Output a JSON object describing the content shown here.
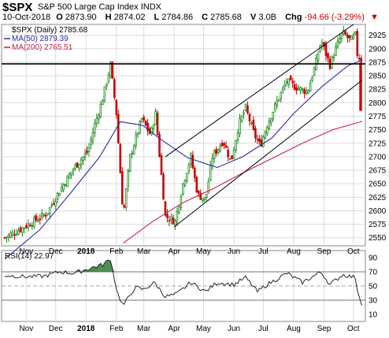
{
  "header": {
    "symbol": "$SPX",
    "name": "S&P 500 Large Cap Index",
    "exchange": "INDX",
    "date": "10-Oct-2018",
    "open_label": "O",
    "open": "2873.90",
    "high_label": "H",
    "high": "2874.02",
    "low_label": "L",
    "low": "2784.86",
    "close_label": "C",
    "close": "2785.68",
    "volume_label": "V",
    "volume": "3.0B",
    "change_label": "Chg",
    "change": "-94.66 (-3.29%)",
    "change_icon": "triangle-down-icon"
  },
  "colors": {
    "price_up": "#1a8a1a",
    "price_down": "#cc0000",
    "ma50": "#2b2bb0",
    "ma200": "#cc2244",
    "channel": "#000000",
    "rsi_fill": "#2e7d32",
    "rsi_line": "#111111"
  },
  "chart_data": [
    {
      "type": "line",
      "subtype": "candlestick",
      "title": "$SPX (Daily) 2785.68",
      "x_ticks": [
        "Nov",
        "Dec",
        "2018",
        "Feb",
        "Mar",
        "Apr",
        "May",
        "Jun",
        "Jul",
        "Aug",
        "Sep",
        "Oct"
      ],
      "y_ticks": [
        2550,
        2575,
        2600,
        2625,
        2650,
        2675,
        2700,
        2725,
        2750,
        2775,
        2800,
        2825,
        2850,
        2875,
        2900,
        2925
      ],
      "ylim": [
        2535,
        2945
      ],
      "axis_side": "right",
      "grid": true,
      "legend_position": "top-left",
      "x_domain": [
        "2017-10-10",
        "2018-10-10"
      ],
      "legend": [
        {
          "label": "$SPX (Daily) 2785.68",
          "color": "#000000"
        },
        {
          "label": "MA(50) 2879.39",
          "color": "#2b2bb0"
        },
        {
          "label": "MA(200) 2765.51",
          "color": "#cc2244"
        }
      ],
      "close_series": [
        [
          "2017-10-10",
          2550
        ],
        [
          "2017-10-25",
          2565
        ],
        [
          "2017-11-08",
          2580
        ],
        [
          "2017-11-22",
          2595
        ],
        [
          "2017-12-06",
          2640
        ],
        [
          "2017-12-20",
          2680
        ],
        [
          "2018-01-03",
          2710
        ],
        [
          "2018-01-10",
          2760
        ],
        [
          "2018-01-17",
          2800
        ],
        [
          "2018-01-26",
          2870
        ],
        [
          "2018-02-01",
          2780
        ],
        [
          "2018-02-08",
          2590
        ],
        [
          "2018-02-15",
          2700
        ],
        [
          "2018-02-27",
          2770
        ],
        [
          "2018-03-08",
          2740
        ],
        [
          "2018-03-13",
          2780
        ],
        [
          "2018-03-23",
          2590
        ],
        [
          "2018-04-02",
          2580
        ],
        [
          "2018-04-10",
          2650
        ],
        [
          "2018-04-18",
          2700
        ],
        [
          "2018-04-25",
          2630
        ],
        [
          "2018-05-03",
          2620
        ],
        [
          "2018-05-10",
          2700
        ],
        [
          "2018-05-21",
          2730
        ],
        [
          "2018-05-29",
          2690
        ],
        [
          "2018-06-06",
          2760
        ],
        [
          "2018-06-13",
          2790
        ],
        [
          "2018-06-22",
          2740
        ],
        [
          "2018-06-28",
          2720
        ],
        [
          "2018-07-05",
          2760
        ],
        [
          "2018-07-17",
          2810
        ],
        [
          "2018-07-25",
          2840
        ],
        [
          "2018-08-02",
          2830
        ],
        [
          "2018-08-15",
          2820
        ],
        [
          "2018-08-24",
          2875
        ],
        [
          "2018-08-29",
          2915
        ],
        [
          "2018-09-07",
          2870
        ],
        [
          "2018-09-14",
          2905
        ],
        [
          "2018-09-20",
          2930
        ],
        [
          "2018-09-28",
          2915
        ],
        [
          "2018-10-03",
          2925
        ],
        [
          "2018-10-05",
          2890
        ],
        [
          "2018-10-09",
          2880
        ],
        [
          "2018-10-10",
          2785.68
        ]
      ],
      "ma50": [
        [
          "2017-10-10",
          2510
        ],
        [
          "2017-11-15",
          2565
        ],
        [
          "2017-12-15",
          2630
        ],
        [
          "2018-01-15",
          2700
        ],
        [
          "2018-02-05",
          2765
        ],
        [
          "2018-02-28",
          2758
        ],
        [
          "2018-03-20",
          2730
        ],
        [
          "2018-04-15",
          2698
        ],
        [
          "2018-05-15",
          2680
        ],
        [
          "2018-06-10",
          2700
        ],
        [
          "2018-07-10",
          2735
        ],
        [
          "2018-08-01",
          2780
        ],
        [
          "2018-08-30",
          2830
        ],
        [
          "2018-09-25",
          2868
        ],
        [
          "2018-10-10",
          2879.39
        ]
      ],
      "ma200": [
        [
          "2018-02-08",
          2540
        ],
        [
          "2018-03-10",
          2580
        ],
        [
          "2018-04-10",
          2615
        ],
        [
          "2018-05-10",
          2640
        ],
        [
          "2018-06-10",
          2670
        ],
        [
          "2018-07-10",
          2697
        ],
        [
          "2018-08-10",
          2725
        ],
        [
          "2018-09-10",
          2750
        ],
        [
          "2018-10-10",
          2765.51
        ]
      ],
      "horizontal_line": 2872,
      "channel_lines": [
        [
          [
            "2018-03-23",
            2700
          ],
          [
            "2018-10-01",
            2945
          ]
        ],
        [
          [
            "2018-04-01",
            2570
          ],
          [
            "2018-10-10",
            2842
          ]
        ]
      ]
    },
    {
      "type": "area",
      "title": "RSI(14) 22.97",
      "x_ticks": [
        "Nov",
        "Dec",
        "2018",
        "Feb",
        "Mar",
        "Apr",
        "May",
        "Jun",
        "Jul",
        "Aug",
        "Sep",
        "Oct"
      ],
      "y_ticks": [
        10,
        30,
        50,
        70,
        90
      ],
      "ylim": [
        0,
        100
      ],
      "reference_lines": [
        30,
        50,
        70
      ],
      "axis_side": "right",
      "legend_position": "top-left",
      "x_domain": [
        "2017-10-10",
        "2018-10-10"
      ],
      "legend": [
        {
          "label": "RSI(14) 22.97",
          "color": "#111111"
        }
      ],
      "series": [
        [
          "2017-10-10",
          65
        ],
        [
          "2017-11-01",
          63
        ],
        [
          "2017-11-20",
          64
        ],
        [
          "2017-12-05",
          70
        ],
        [
          "2017-12-20",
          68
        ],
        [
          "2018-01-05",
          75
        ],
        [
          "2018-01-18",
          80
        ],
        [
          "2018-01-26",
          88
        ],
        [
          "2018-02-02",
          40
        ],
        [
          "2018-02-08",
          22
        ],
        [
          "2018-02-20",
          48
        ],
        [
          "2018-03-01",
          45
        ],
        [
          "2018-03-12",
          55
        ],
        [
          "2018-03-23",
          35
        ],
        [
          "2018-04-03",
          38
        ],
        [
          "2018-04-18",
          55
        ],
        [
          "2018-05-03",
          42
        ],
        [
          "2018-05-15",
          55
        ],
        [
          "2018-06-01",
          52
        ],
        [
          "2018-06-13",
          62
        ],
        [
          "2018-06-25",
          42
        ],
        [
          "2018-07-05",
          52
        ],
        [
          "2018-07-25",
          68
        ],
        [
          "2018-08-10",
          55
        ],
        [
          "2018-08-29",
          70
        ],
        [
          "2018-09-07",
          52
        ],
        [
          "2018-09-20",
          66
        ],
        [
          "2018-10-03",
          62
        ],
        [
          "2018-10-05",
          45
        ],
        [
          "2018-10-10",
          22.97
        ]
      ]
    }
  ]
}
